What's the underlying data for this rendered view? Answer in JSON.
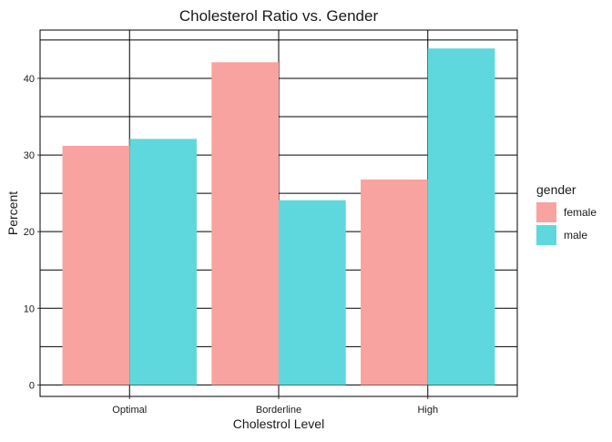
{
  "chart_data": {
    "type": "bar",
    "title": "Cholesterol Ratio vs. Gender",
    "xlabel": "Cholestrol Level",
    "ylabel": "Percent",
    "categories": [
      "Optimal",
      "Borderline",
      "High"
    ],
    "series": [
      {
        "name": "female",
        "values": [
          31.2,
          42.1,
          26.8
        ],
        "color": "#F8A3A0"
      },
      {
        "name": "male",
        "values": [
          32.1,
          24.1,
          43.9
        ],
        "color": "#5ED8DC"
      }
    ],
    "yticks": [
      0,
      10,
      20,
      30,
      40
    ],
    "ylim": [
      -1.5,
      46.3
    ],
    "grid": true,
    "legend": {
      "title": "gender",
      "position": "right"
    }
  }
}
